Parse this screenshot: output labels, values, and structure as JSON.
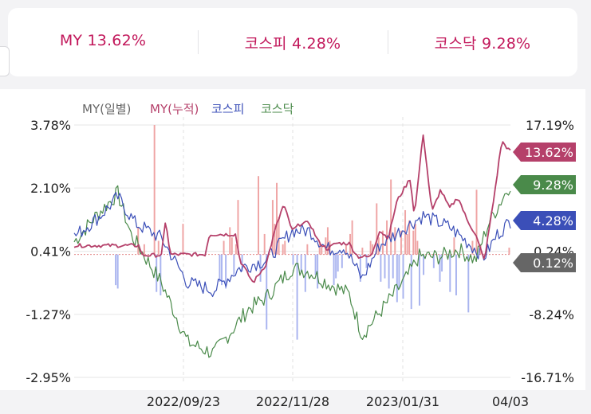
{
  "header": {
    "stats": [
      {
        "label": "MY 13.62%"
      },
      {
        "label": "코스피 4.28%"
      },
      {
        "label": "코스닥 9.28%"
      }
    ],
    "accent": "#c2185b"
  },
  "chart_data": {
    "type": "line",
    "legend": [
      {
        "name": "MY(일별)",
        "color": "#666666"
      },
      {
        "name": "MY(누적)",
        "color": "#b5406a"
      },
      {
        "name": "코스피",
        "color": "#3b4fb8"
      },
      {
        "name": "코스닥",
        "color": "#4a8a4a"
      }
    ],
    "left_axis": {
      "ticks": [
        "3.78%",
        "2.10%",
        "0.41%",
        "-1.27%",
        "-2.95%"
      ],
      "values": [
        3.78,
        2.1,
        0.41,
        -1.27,
        -2.95
      ]
    },
    "right_axis": {
      "ticks": [
        "17.19%",
        "0.24%",
        "-8.24%",
        "-16.71%"
      ],
      "values": [
        17.19,
        0.24,
        -8.24,
        -16.71
      ]
    },
    "x_labels": [
      "2022/09/23",
      "2022/11/28",
      "2023/01/31",
      "04/03"
    ],
    "end_badges": [
      {
        "text": "13.62%",
        "color": "#b5406a",
        "value": 13.62
      },
      {
        "text": "9.28%",
        "color": "#4a8a4a",
        "value": 9.28
      },
      {
        "text": "4.28%",
        "color": "#3b4fb8",
        "value": 4.28
      },
      {
        "text": "0.12%",
        "color": "#666666",
        "value": 0.12
      }
    ],
    "daily_bars": [
      0,
      0,
      0,
      0,
      0,
      0,
      0,
      0,
      0,
      0,
      0,
      0,
      0,
      0,
      0,
      0,
      0,
      0,
      0,
      0,
      -0.9,
      -1.0,
      0,
      0,
      0,
      0,
      0,
      0,
      0,
      0,
      0,
      0.8,
      0,
      0,
      0.3,
      0,
      0,
      0,
      0,
      3.8,
      -1.1,
      0.4,
      -1.2,
      0,
      0,
      0,
      0,
      0,
      0,
      0,
      0,
      0,
      0,
      0.9,
      0,
      0,
      0,
      0,
      0,
      0,
      0,
      0,
      0,
      0,
      0,
      0,
      0,
      0,
      0,
      0,
      0,
      -0.8,
      -0.9,
      0.4,
      -1.0,
      0,
      0.8,
      0.5,
      -0.6,
      0.3,
      1.6,
      0,
      -0.5,
      0,
      0,
      0,
      0,
      0,
      0,
      0,
      2.3,
      -0.8,
      0,
      0.6,
      -2.2,
      0,
      0,
      1.6,
      0.9,
      2.1,
      1.1,
      0,
      0.3,
      0.4,
      0,
      0,
      0,
      -0.3,
      0,
      -2.5,
      0,
      -0.5,
      0,
      -1.1,
      0.3,
      0,
      0,
      0,
      -0.6,
      -1.0,
      0.3,
      0.3,
      0,
      0.5,
      0.8,
      0.4,
      0,
      -0.9,
      -0.7,
      -0.5,
      0,
      -0.4,
      0,
      0.3,
      0,
      0.6,
      1.0,
      0,
      0,
      0,
      -0.8,
      0.2,
      0,
      -0.4,
      0,
      0.4,
      0.3,
      0,
      1.5,
      0.5,
      -0.8,
      0.7,
      -0.7,
      1.0,
      -1.0,
      2.2,
      -0.7,
      0.8,
      -1.4,
      -1.0,
      0.7,
      -1.3,
      1.3,
      0.6,
      1.0,
      -1.6,
      0.7,
      0.9,
      0.4,
      -1.5,
      0,
      -0.6,
      0,
      0,
      0,
      0,
      -0.4,
      0,
      0,
      -0.8,
      -0.5,
      0,
      0,
      0,
      -1.1,
      0,
      0.5,
      -1.2,
      0,
      0,
      0,
      0,
      0,
      -1.7,
      0,
      0.4,
      0,
      1.9,
      0,
      0.3,
      0,
      0,
      0,
      0,
      0,
      0,
      0,
      0,
      0,
      0,
      0,
      0,
      0,
      0.2
    ]
  }
}
